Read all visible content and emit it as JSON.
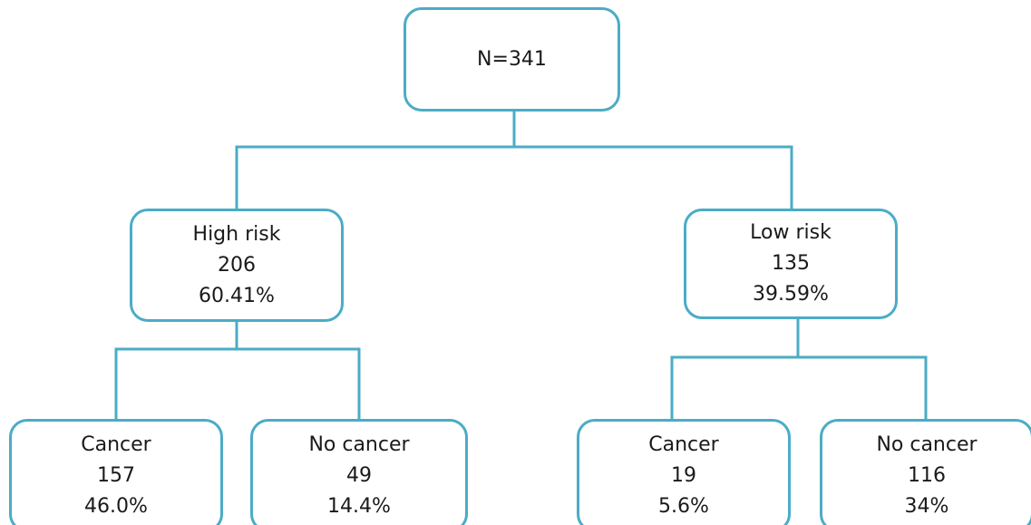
{
  "line_color": "#4bacc6",
  "root": {
    "label": "N=341"
  },
  "high_risk": {
    "label": "High risk",
    "count": "206",
    "percent": "60.41%",
    "children": [
      {
        "label": "Cancer",
        "count": "157",
        "percent": "46.0%"
      },
      {
        "label": "No cancer",
        "count": "49",
        "percent": "14.4%"
      }
    ]
  },
  "low_risk": {
    "label": "Low risk",
    "count": "135",
    "percent": "39.59%",
    "children": [
      {
        "label": "Cancer",
        "count": "19",
        "percent": "5.6%"
      },
      {
        "label": "No cancer",
        "count": "116",
        "percent": "34%"
      }
    ]
  }
}
